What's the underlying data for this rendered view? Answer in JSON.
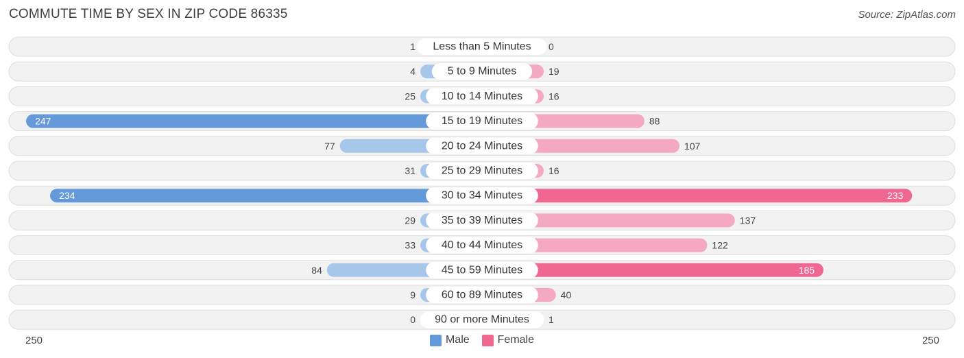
{
  "header": {
    "title": "COMMUTE TIME BY SEX IN ZIP CODE 86335",
    "source": "Source: ZipAtlas.com"
  },
  "colors": {
    "male_strong": "#6499da",
    "male_light": "#a7c7ea",
    "female_strong": "#f06892",
    "female_light": "#f5a8c2",
    "row_background": "#f2f2f2",
    "row_border": "#dddddd"
  },
  "chart_data": {
    "type": "bar",
    "orientation": "horizontal-diverging",
    "title": "COMMUTE TIME BY SEX IN ZIP CODE 86335",
    "categories": [
      "Less than 5 Minutes",
      "5 to 9 Minutes",
      "10 to 14 Minutes",
      "15 to 19 Minutes",
      "20 to 24 Minutes",
      "25 to 29 Minutes",
      "30 to 34 Minutes",
      "35 to 39 Minutes",
      "40 to 44 Minutes",
      "45 to 59 Minutes",
      "60 to 89 Minutes",
      "90 or more Minutes"
    ],
    "series": [
      {
        "name": "Male",
        "values": [
          1,
          4,
          25,
          247,
          77,
          31,
          234,
          29,
          33,
          84,
          9,
          0
        ]
      },
      {
        "name": "Female",
        "values": [
          0,
          19,
          16,
          88,
          107,
          16,
          233,
          137,
          122,
          185,
          40,
          1
        ]
      }
    ],
    "xlim": [
      -250,
      250
    ],
    "axis_labels": {
      "left": "250",
      "right": "250"
    },
    "legend": {
      "position": "bottom-center",
      "entries": [
        "Male",
        "Female"
      ]
    }
  }
}
